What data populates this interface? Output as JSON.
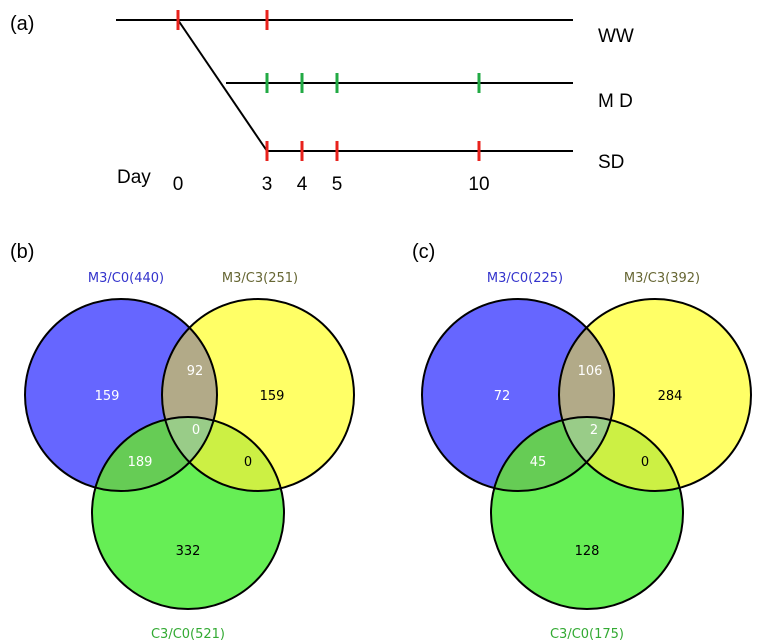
{
  "panel_a": {
    "label": "(a)",
    "lines": [
      {
        "name": "WW"
      },
      {
        "name": "M D"
      },
      {
        "name": "SD"
      }
    ],
    "day_label": "Day",
    "day_ticks": [
      "0",
      "3",
      "4",
      "5",
      "10"
    ]
  },
  "panel_b": {
    "label": "(b)",
    "sets": {
      "m3_c0": "M3/C0(440)",
      "m3_c3": "M3/C3(251)",
      "c3_c0": "C3/C0(521)"
    },
    "regions": {
      "only_m3_c0": "159",
      "only_m3_c3": "159",
      "only_c3_c0": "332",
      "m3_c0_and_m3_c3": "92",
      "m3_c0_and_c3_c0": "189",
      "m3_c3_and_c3_c0": "0",
      "all_three": "0"
    }
  },
  "panel_c": {
    "label": "(c)",
    "sets": {
      "m3_c0": "M3/C0(225)",
      "m3_c3": "M3/C3(392)",
      "c3_c0": "C3/C0(175)"
    },
    "regions": {
      "only_m3_c0": "72",
      "only_m3_c3": "284",
      "only_c3_c0": "128",
      "m3_c0_and_m3_c3": "106",
      "m3_c0_and_c3_c0": "45",
      "m3_c3_and_c3_c0": "0",
      "all_three": "2"
    }
  },
  "colors": {
    "blue": "#6666ff",
    "yellow": "#ffff66",
    "green": "#66ee55",
    "red_tick": "#e8221c",
    "green_tick": "#22aa44"
  }
}
